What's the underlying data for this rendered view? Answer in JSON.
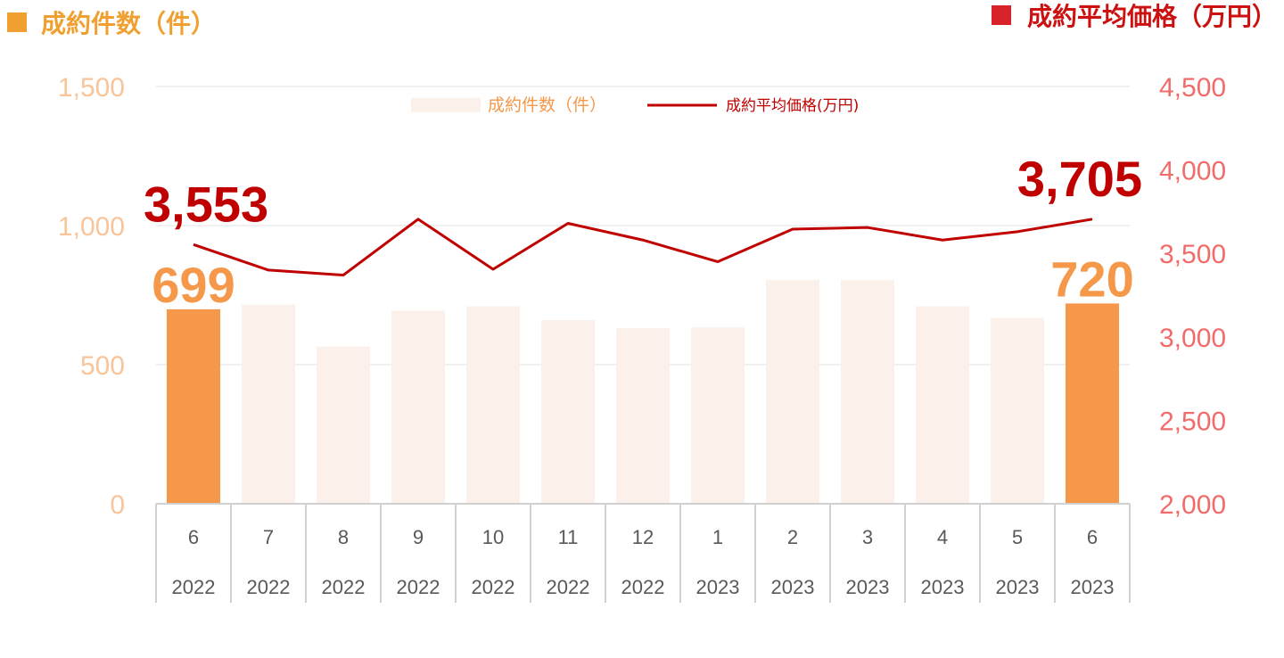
{
  "header": {
    "left_title": "成約件数（件）",
    "right_title": "成約平均価格（万円）"
  },
  "legend": {
    "bars_label": "成約件数（件）",
    "line_label": "成約平均価格(万円)"
  },
  "colors": {
    "left_marker": "#f0a030",
    "right_marker": "#d9232a",
    "left_title": "#f0a030",
    "right_title": "#cc1111",
    "bar_highlight": "#f5984a",
    "bar_light": "#fcf1ea",
    "line": "#c00000",
    "left_axis_text": "#f8c49a",
    "right_axis_text": "#f26b6b",
    "x_axis_text": "#595959",
    "bar_label": "#f5984a",
    "line_label": "#c00000",
    "grid": "#e0e0e0"
  },
  "chart_data": {
    "type": "bar",
    "categories": [
      {
        "month": "6",
        "year": "2022"
      },
      {
        "month": "7",
        "year": "2022"
      },
      {
        "month": "8",
        "year": "2022"
      },
      {
        "month": "9",
        "year": "2022"
      },
      {
        "month": "10",
        "year": "2022"
      },
      {
        "month": "11",
        "year": "2022"
      },
      {
        "month": "12",
        "year": "2022"
      },
      {
        "month": "1",
        "year": "2023"
      },
      {
        "month": "2",
        "year": "2023"
      },
      {
        "month": "3",
        "year": "2023"
      },
      {
        "month": "4",
        "year": "2023"
      },
      {
        "month": "5",
        "year": "2023"
      },
      {
        "month": "6",
        "year": "2023"
      }
    ],
    "series": [
      {
        "name": "成約件数（件）",
        "type": "bar",
        "axis": "left",
        "values": [
          699,
          716,
          565,
          694,
          710,
          660,
          631,
          634,
          805,
          805,
          710,
          668,
          720
        ],
        "highlight_indices": [
          0,
          12
        ]
      },
      {
        "name": "成約平均価格(万円)",
        "type": "line",
        "axis": "right",
        "values": [
          3553,
          3400,
          3370,
          3705,
          3405,
          3680,
          3580,
          3450,
          3645,
          3655,
          3580,
          3630,
          3705
        ]
      }
    ],
    "bar_data_labels": [
      {
        "index": 0,
        "text": "699"
      },
      {
        "index": 12,
        "text": "720"
      }
    ],
    "line_data_labels": [
      {
        "index": 0,
        "text": "3,553"
      },
      {
        "index": 12,
        "text": "3,705"
      }
    ],
    "y_left": {
      "min": 0,
      "max": 1500,
      "ticks": [
        0,
        500,
        1000,
        1500
      ],
      "tick_labels": [
        "0",
        "500",
        "1,000",
        "1,500"
      ]
    },
    "y_right": {
      "min": 2000,
      "max": 4500,
      "ticks": [
        2000,
        2500,
        3000,
        3500,
        4000,
        4500
      ],
      "tick_labels": [
        "2,000",
        "2,500",
        "3,000",
        "3,500",
        "4,000",
        "4,500"
      ]
    },
    "grid": true,
    "legend_position": "top-center"
  }
}
